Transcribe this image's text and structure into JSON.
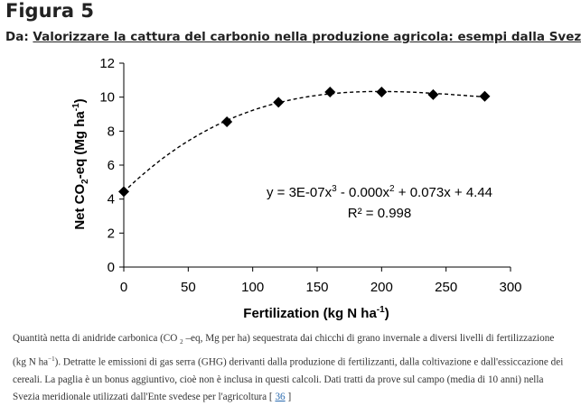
{
  "figure_label": "Figura 5",
  "source": {
    "prefix": "Da: ",
    "title": "Valorizzare la cattura del carbonio nella produzione agricola: esempi dalla Svezia"
  },
  "chart_data": {
    "type": "scatter",
    "x": [
      0,
      80,
      120,
      160,
      200,
      240,
      280
    ],
    "y": [
      4.44,
      8.55,
      9.7,
      10.3,
      10.3,
      10.15,
      10.05
    ],
    "xlabel": "Fertilization (kg N ha-1)",
    "ylabel": "Net CO2-eq (Mg ha-1)",
    "xlim": [
      0,
      300
    ],
    "ylim": [
      0,
      12
    ],
    "x_ticks": [
      "0",
      "50",
      "100",
      "150",
      "200",
      "250",
      "300"
    ],
    "y_ticks": [
      "0",
      "2",
      "4",
      "6",
      "8",
      "10",
      "12"
    ],
    "trendline": {
      "type": "polynomial-3",
      "equation": "y = 3E-07x3 - 0.000x2 + 0.073x + 4.44",
      "r_squared": "R² = 0.998",
      "style": "dashed"
    },
    "grid": false,
    "legend": "none",
    "marker": "diamond",
    "color": "#000000"
  },
  "caption": {
    "text_1": "Quantità netta di anidride carbonica (CO",
    "sub_2": "2",
    "text_2": "–eq, Mg per ha) sequestrata dai chicchi di grano invernale a diversi livelli di fertilizzazione (kg N ha",
    "sup_1": "−1",
    "text_3": "). Detratte le emissioni di gas serra (GHG) derivanti dalla produzione di fertilizzanti, dalla coltivazione e dall'essiccazione dei cereali. La paglia è un bonus aggiuntivo, cioè non è inclusa in questi calcoli. Dati tratti da prove sul campo (media di 10 anni) nella Svezia meridionale utilizzati dall'Ente svedese per l'agricoltura [",
    "ref": "36",
    "text_4": "]"
  }
}
